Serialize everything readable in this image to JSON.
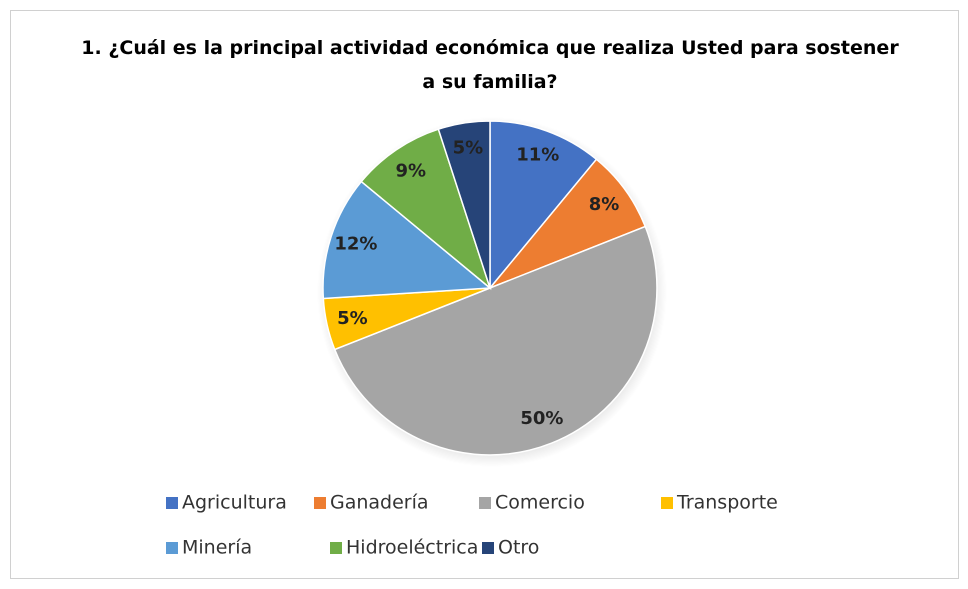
{
  "chart_data": {
    "type": "pie",
    "title": "1. ¿Cuál es la principal actividad económica que realiza Usted para sostener a su familia?",
    "categories": [
      "Agricultura",
      "Ganadería",
      "Comercio",
      "Transporte",
      "Minería",
      "Hidroeléctrica",
      "Otro"
    ],
    "values": [
      11,
      8,
      50,
      5,
      12,
      9,
      5
    ],
    "value_labels": [
      "11%",
      "8%",
      "50%",
      "5%",
      "12%",
      "9%",
      "5%"
    ],
    "colors": [
      "#4472c4",
      "#ed7d31",
      "#a5a5a5",
      "#ffc000",
      "#5b9bd5",
      "#70ad47",
      "#264478"
    ],
    "legend": "bottom"
  }
}
